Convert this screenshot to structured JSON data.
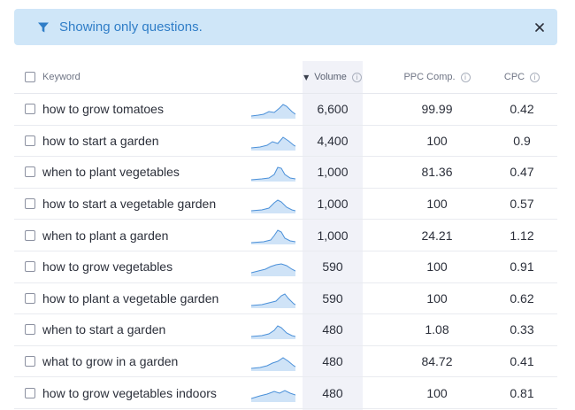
{
  "banner": {
    "text": "Showing only questions.",
    "filter_icon": "filter-icon",
    "close_icon": "close-icon"
  },
  "table": {
    "headers": {
      "keyword": "Keyword",
      "volume": "Volume",
      "ppc": "PPC Comp.",
      "cpc": "CPC",
      "sort_indicator": "descending"
    },
    "rows": [
      {
        "keyword": "how to grow tomatoes",
        "volume": "6,600",
        "ppc": "99.99",
        "cpc": "0.42"
      },
      {
        "keyword": "how to start a garden",
        "volume": "4,400",
        "ppc": "100",
        "cpc": "0.9"
      },
      {
        "keyword": "when to plant vegetables",
        "volume": "1,000",
        "ppc": "81.36",
        "cpc": "0.47"
      },
      {
        "keyword": "how to start a vegetable garden",
        "volume": "1,000",
        "ppc": "100",
        "cpc": "0.57"
      },
      {
        "keyword": "when to plant a garden",
        "volume": "1,000",
        "ppc": "24.21",
        "cpc": "1.12"
      },
      {
        "keyword": "how to grow vegetables",
        "volume": "590",
        "ppc": "100",
        "cpc": "0.91"
      },
      {
        "keyword": "how to plant a vegetable garden",
        "volume": "590",
        "ppc": "100",
        "cpc": "0.62"
      },
      {
        "keyword": "when to start a garden",
        "volume": "480",
        "ppc": "1.08",
        "cpc": "0.33"
      },
      {
        "keyword": "what to grow in a garden",
        "volume": "480",
        "ppc": "84.72",
        "cpc": "0.41"
      },
      {
        "keyword": "how to grow vegetables indoors",
        "volume": "480",
        "ppc": "100",
        "cpc": "0.81"
      }
    ]
  },
  "colors": {
    "banner_bg": "#cfe6f8",
    "banner_text": "#2f7dc7",
    "sparkline_fill": "#cfe3f7",
    "sparkline_stroke": "#4a90d9",
    "volume_column_bg": "#f1f2f8"
  }
}
